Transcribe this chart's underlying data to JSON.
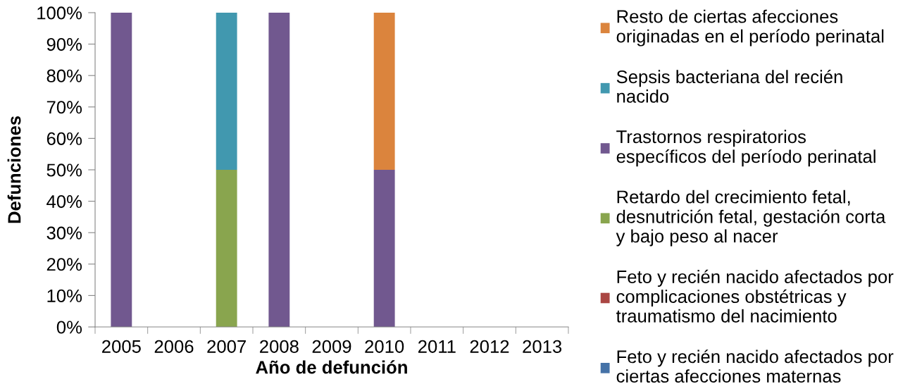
{
  "chart_data": {
    "type": "bar",
    "stacked": true,
    "xlabel": "Año de defunción",
    "ylabel": "Defunciones",
    "categories": [
      "2005",
      "2006",
      "2007",
      "2008",
      "2009",
      "2010",
      "2011",
      "2012",
      "2013"
    ],
    "series": [
      {
        "name": "Feto y recién nacido afectados por ciertas afecciones maternas",
        "color": "#4572a7",
        "values": [
          0,
          0,
          0,
          0,
          0,
          0,
          0,
          0,
          0
        ]
      },
      {
        "name": "Feto y recién nacido afectados por complicaciones obstétricas y traumatismo del nacimiento",
        "color": "#aa4643",
        "values": [
          0,
          0,
          0,
          0,
          0,
          0,
          0,
          0,
          0
        ]
      },
      {
        "name": "Retardo del crecimiento fetal, desnutrición fetal, gestación corta y bajo peso al nacer",
        "color": "#89a54e",
        "values": [
          0,
          0,
          50,
          0,
          0,
          0,
          0,
          0,
          0
        ]
      },
      {
        "name": "Trastornos respiratorios específicos del período perinatal",
        "color": "#71588f",
        "values": [
          100,
          0,
          0,
          100,
          0,
          50,
          0,
          0,
          0
        ]
      },
      {
        "name": "Sepsis bacteriana del recién nacido",
        "color": "#4198af",
        "values": [
          0,
          0,
          50,
          0,
          0,
          0,
          0,
          0,
          0
        ]
      },
      {
        "name": "Resto de ciertas afecciones originadas en el período perinatal",
        "color": "#db843d",
        "values": [
          0,
          0,
          0,
          0,
          0,
          50,
          0,
          0,
          0
        ]
      }
    ],
    "ylim": [
      0,
      100
    ],
    "yticks": [
      {
        "value": 0,
        "label": "0%"
      },
      {
        "value": 10,
        "label": "10%"
      },
      {
        "value": 20,
        "label": "20%"
      },
      {
        "value": 30,
        "label": "30%"
      },
      {
        "value": 40,
        "label": "40%"
      },
      {
        "value": 50,
        "label": "50%"
      },
      {
        "value": 60,
        "label": "60%"
      },
      {
        "value": 70,
        "label": "70%"
      },
      {
        "value": 80,
        "label": "80%"
      },
      {
        "value": 90,
        "label": "90%"
      },
      {
        "value": 100,
        "label": "100%"
      }
    ],
    "legend": "right"
  }
}
